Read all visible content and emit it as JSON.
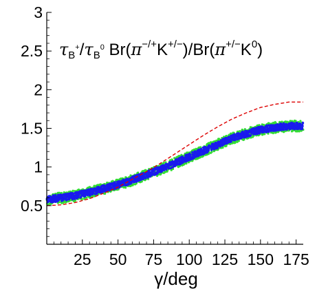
{
  "chart_data": {
    "type": "scatter",
    "xlabel": "γ/deg",
    "ylabel": "",
    "xlim": [
      0,
      180
    ],
    "ylim": [
      0,
      3
    ],
    "x_ticks": [
      "25",
      "50",
      "75",
      "100",
      "125",
      "150",
      "175"
    ],
    "x_tick_values": [
      25,
      50,
      75,
      100,
      125,
      150,
      175
    ],
    "y_ticks": [
      "0.5",
      "1",
      "1.5",
      "2",
      "2.5",
      "3"
    ],
    "y_tick_values": [
      0.5,
      1,
      1.5,
      2,
      2.5,
      3
    ],
    "grid": false,
    "annotation": {
      "tau1": "τ",
      "sub1": "B",
      "sup1": "+",
      "slash": "/",
      "tau2": "τ",
      "sub2": "B",
      "sup2": "0",
      "br1": " Br(",
      "pi1": "π",
      "sup3": "−/+",
      "k1": "K",
      "sup4": "+/−",
      "mid": ")/Br(",
      "pi2": "π",
      "sup5": "+/−",
      "k2": "K",
      "sup6": "0",
      "close": ")"
    },
    "series": [
      {
        "style": "scatter band, green",
        "color": "#33dd33",
        "x": [
          0,
          10,
          20,
          30,
          40,
          50,
          60,
          70,
          80,
          90,
          100,
          110,
          120,
          130,
          140,
          150,
          160,
          170,
          180
        ],
        "y": [
          0.58,
          0.6,
          0.63,
          0.67,
          0.72,
          0.77,
          0.83,
          0.9,
          0.97,
          1.05,
          1.13,
          1.21,
          1.29,
          1.37,
          1.43,
          1.48,
          1.51,
          1.53,
          1.53
        ],
        "spread": 0.07
      },
      {
        "style": "scatter band, blue",
        "color": "#1a1aee",
        "x": [
          0,
          10,
          20,
          30,
          40,
          50,
          60,
          70,
          80,
          90,
          100,
          110,
          120,
          130,
          140,
          150,
          160,
          170,
          180
        ],
        "y": [
          0.58,
          0.6,
          0.63,
          0.67,
          0.72,
          0.77,
          0.83,
          0.9,
          0.97,
          1.05,
          1.13,
          1.21,
          1.29,
          1.37,
          1.43,
          1.48,
          1.51,
          1.53,
          1.53
        ],
        "spread": 0.045
      },
      {
        "style": "dashed line",
        "color": "#dd0000",
        "x": [
          0,
          10,
          20,
          30,
          40,
          50,
          60,
          70,
          80,
          90,
          100,
          110,
          120,
          130,
          140,
          150,
          160,
          170,
          180
        ],
        "y": [
          0.5,
          0.51,
          0.54,
          0.59,
          0.66,
          0.74,
          0.84,
          0.94,
          1.05,
          1.17,
          1.29,
          1.41,
          1.52,
          1.62,
          1.7,
          1.77,
          1.81,
          1.84,
          1.84
        ]
      }
    ]
  }
}
